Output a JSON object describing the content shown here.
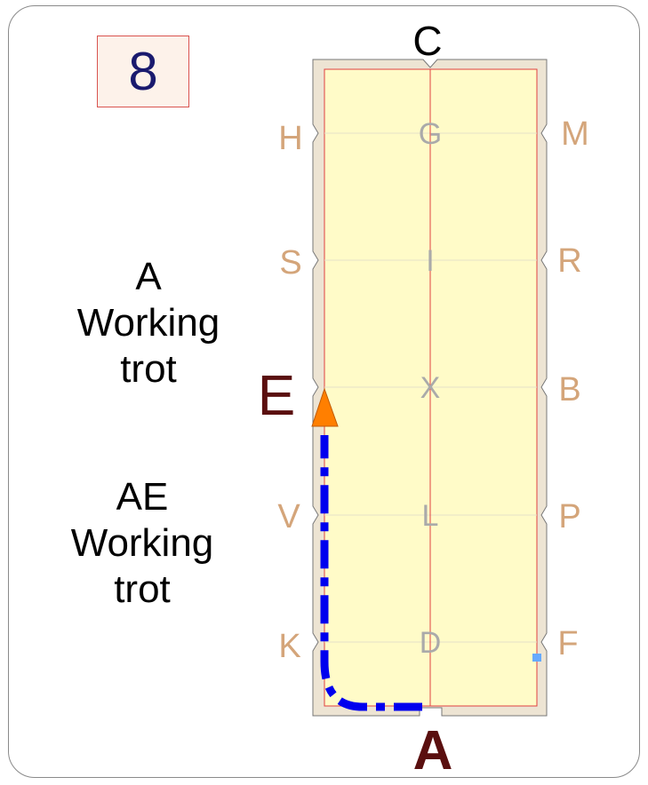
{
  "test_number": "8",
  "movements": [
    {
      "marker": "A",
      "gait": "Working",
      "gait_detail": "trot"
    },
    {
      "marker": "AE",
      "gait": "Working",
      "gait_detail": "trot"
    }
  ],
  "arena_letters": {
    "top": "C",
    "bottom": "A",
    "left": [
      "H",
      "S",
      "E",
      "V",
      "K"
    ],
    "right": [
      "M",
      "R",
      "B",
      "P",
      "F"
    ],
    "center": [
      "G",
      "I",
      "X",
      "L",
      "D"
    ]
  },
  "colors": {
    "arena_fill": "#fffbc8",
    "arena_border": "#ede4d3",
    "edge_letter": "#d4a57a",
    "center_letter": "#aaaaaa",
    "highlight_letter": "#5a0f0f",
    "path": "#0000ee",
    "arrow": "#ff7f00"
  }
}
